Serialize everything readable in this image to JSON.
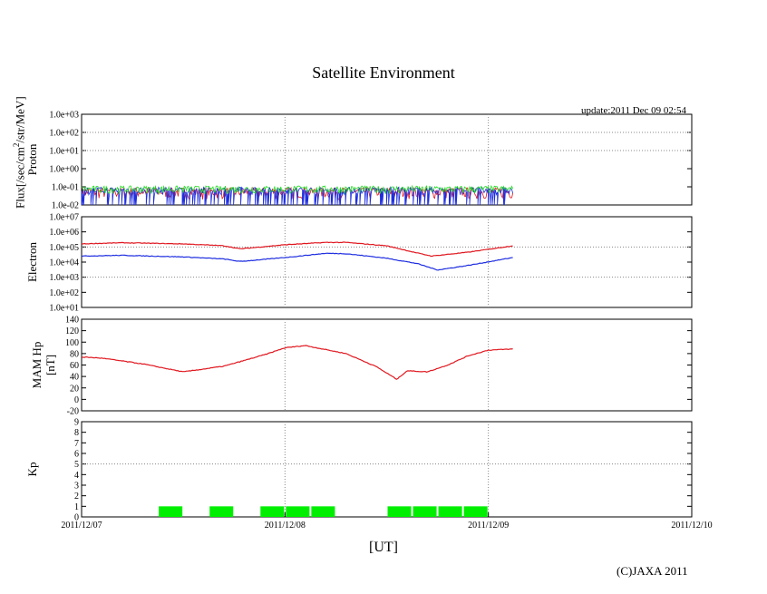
{
  "title": "Satellite Environment",
  "update": "update:2011 Dec 09 02:54",
  "x_axis_label": "[UT]",
  "copyright": "(C)JAXA 2011",
  "flux_label": "Flux[/sec/cm",
  "flux_label_sup": "2",
  "flux_label_rest": "/str/MeV]",
  "x_ticks": [
    "2011/12/07",
    "2011/12/08",
    "2011/12/09",
    "2011/12/10"
  ],
  "colors": {
    "red": "#e0161e",
    "blue": "#1e2ee0",
    "green": "#22dd22",
    "kp": "#00ee00"
  },
  "chart_data": [
    {
      "type": "line",
      "panel": "Proton",
      "ylabel": "Proton",
      "yscale": "log",
      "yticks": [
        "1.0e-02",
        "1.0e-01",
        "1.0e+00",
        "1.0e+01",
        "1.0e+02",
        "1.0e+03"
      ],
      "ylim": [
        0.01,
        1000
      ],
      "x_days": [
        0,
        3
      ],
      "series": [
        {
          "color": "red",
          "x": [
            0.0,
            0.5,
            1.0,
            1.5,
            2.0,
            2.12
          ],
          "values": [
            0.02,
            0.02,
            0.02,
            0.02,
            0.02,
            0.02
          ]
        },
        {
          "color": "blue",
          "x": [
            0.0,
            0.5,
            1.0,
            1.5,
            2.0,
            2.12
          ],
          "values": [
            0.06,
            0.06,
            0.06,
            0.06,
            0.06,
            0.06
          ]
        },
        {
          "color": "green",
          "x": [
            0.0,
            0.5,
            1.0,
            1.5,
            2.0,
            2.12
          ],
          "values": [
            0.07,
            0.07,
            0.07,
            0.07,
            0.07,
            0.07
          ]
        }
      ]
    },
    {
      "type": "line",
      "panel": "Electron",
      "ylabel": "Electron",
      "yscale": "log",
      "yticks": [
        "1.0e+01",
        "1.0e+02",
        "1.0e+03",
        "1.0e+04",
        "1.0e+05",
        "1.0e+06",
        "1.0e+07"
      ],
      "ylim": [
        10,
        10000000
      ],
      "x_days": [
        0,
        3
      ],
      "series": [
        {
          "color": "red",
          "x": [
            0.0,
            0.2,
            0.5,
            0.7,
            0.78,
            1.0,
            1.2,
            1.3,
            1.5,
            1.65,
            1.72,
            1.9,
            2.12
          ],
          "values": [
            160000,
            190000,
            160000,
            120000,
            75000,
            140000,
            200000,
            200000,
            120000,
            40000,
            25000,
            45000,
            120000
          ]
        },
        {
          "color": "blue",
          "x": [
            0.0,
            0.2,
            0.5,
            0.7,
            0.78,
            1.0,
            1.2,
            1.3,
            1.5,
            1.65,
            1.75,
            1.9,
            2.12
          ],
          "values": [
            25000,
            28000,
            22000,
            16000,
            11000,
            20000,
            38000,
            36000,
            18000,
            8000,
            3000,
            6000,
            20000
          ]
        }
      ]
    },
    {
      "type": "line",
      "panel": "MAM Hp",
      "ylabel": "MAM Hp",
      "ylabel2": "[nT]",
      "yticks": [
        "-20",
        "0",
        "20",
        "40",
        "60",
        "80",
        "100",
        "120",
        "140"
      ],
      "ylim": [
        -20,
        140
      ],
      "x_days": [
        0,
        3
      ],
      "series": [
        {
          "color": "red",
          "x": [
            0.0,
            0.1,
            0.3,
            0.5,
            0.7,
            0.9,
            1.0,
            1.1,
            1.3,
            1.45,
            1.55,
            1.6,
            1.7,
            1.8,
            1.9,
            2.0,
            2.12
          ],
          "values": [
            74,
            72,
            62,
            48,
            58,
            78,
            90,
            94,
            80,
            57,
            35,
            50,
            48,
            60,
            76,
            86,
            88
          ]
        }
      ]
    },
    {
      "type": "bar",
      "panel": "Kp",
      "ylabel": "Kp",
      "yticks": [
        "0",
        "1",
        "2",
        "3",
        "4",
        "5",
        "6",
        "7",
        "8",
        "9"
      ],
      "ylim": [
        0,
        9
      ],
      "x_days": [
        0,
        3
      ],
      "bars": [
        {
          "x_start": 0.375,
          "x_end": 0.5,
          "value": 1
        },
        {
          "x_start": 0.625,
          "x_end": 0.75,
          "value": 1
        },
        {
          "x_start": 0.875,
          "x_end": 1.0,
          "value": 1
        },
        {
          "x_start": 1.0,
          "x_end": 1.125,
          "value": 1
        },
        {
          "x_start": 1.125,
          "x_end": 1.25,
          "value": 1
        },
        {
          "x_start": 1.5,
          "x_end": 1.625,
          "value": 1
        },
        {
          "x_start": 1.625,
          "x_end": 1.75,
          "value": 1
        },
        {
          "x_start": 1.75,
          "x_end": 1.875,
          "value": 1
        },
        {
          "x_start": 1.875,
          "x_end": 2.0,
          "value": 1
        }
      ]
    }
  ]
}
